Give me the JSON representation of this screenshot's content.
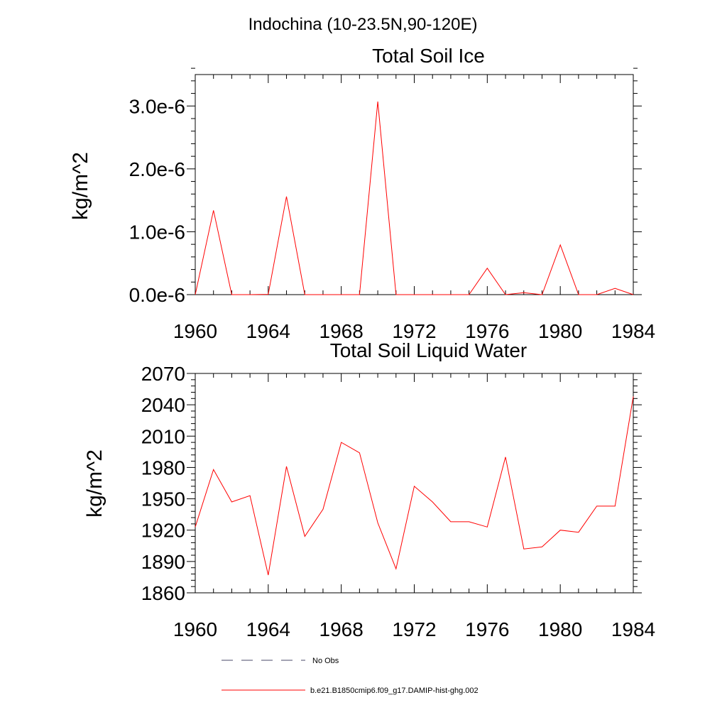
{
  "title": "Indochina (10-23.5N,90-120E)",
  "legend": [
    {
      "label": "No Obs",
      "color": "#4a4a6a",
      "dash": true
    },
    {
      "label": "b.e21.B1850cmip6.f09_g17.DAMIP-hist-ghg.002",
      "color": "#ff0000",
      "dash": false
    }
  ],
  "chart_data": [
    {
      "type": "line",
      "title": "Total Soil Ice",
      "ylabel": "kg/m^2",
      "xlim": [
        1960,
        1984
      ],
      "xticks": [
        1960,
        1964,
        1968,
        1972,
        1976,
        1980,
        1984
      ],
      "xtick_labels": [
        "1960",
        "1964",
        "1968",
        "1972",
        "1976",
        "1980",
        "1984"
      ],
      "ylim": [
        0,
        3.5e-06
      ],
      "yticks": [
        0,
        1e-06,
        2e-06,
        3e-06
      ],
      "ytick_labels": [
        "0.0e-6",
        "1.0e-6",
        "2.0e-6",
        "3.0e-6"
      ],
      "series": [
        {
          "color": "#ff0000",
          "x": [
            1960,
            1961,
            1962,
            1963,
            1964,
            1965,
            1966,
            1967,
            1968,
            1969,
            1970,
            1971,
            1972,
            1973,
            1974,
            1975,
            1976,
            1977,
            1978,
            1979,
            1980,
            1981,
            1982,
            1983,
            1984
          ],
          "y": [
            0,
            1.34e-06,
            0,
            0,
            5e-09,
            1.56e-06,
            0,
            0,
            0,
            0,
            3.07e-06,
            0,
            0,
            0,
            0,
            0,
            4.2e-07,
            0,
            3e-08,
            0,
            7.9e-07,
            0,
            0,
            1e-07,
            0
          ]
        }
      ]
    },
    {
      "type": "line",
      "title": "Total Soil Liquid Water",
      "ylabel": "kg/m^2",
      "xlim": [
        1960,
        1984
      ],
      "xticks": [
        1960,
        1964,
        1968,
        1972,
        1976,
        1980,
        1984
      ],
      "xtick_labels": [
        "1960",
        "1964",
        "1968",
        "1972",
        "1976",
        "1980",
        "1984"
      ],
      "ylim": [
        1860,
        2070
      ],
      "yticks": [
        1860,
        1890,
        1920,
        1950,
        1980,
        2010,
        2040,
        2070
      ],
      "ytick_labels": [
        "1860",
        "1890",
        "1920",
        "1950",
        "1980",
        "2010",
        "2040",
        "2070"
      ],
      "series": [
        {
          "color": "#ff0000",
          "x": [
            1960,
            1961,
            1962,
            1963,
            1964,
            1965,
            1966,
            1967,
            1968,
            1969,
            1970,
            1971,
            1972,
            1973,
            1974,
            1975,
            1976,
            1977,
            1978,
            1979,
            1980,
            1981,
            1982,
            1983,
            1984
          ],
          "y": [
            1923,
            1978,
            1947,
            1953,
            1877,
            1981,
            1914,
            1940,
            2004,
            1994,
            1927,
            1883,
            1962,
            1947,
            1928,
            1928,
            1923,
            1990,
            1902,
            1904,
            1920,
            1918,
            1943,
            1943,
            2048
          ]
        }
      ]
    }
  ]
}
